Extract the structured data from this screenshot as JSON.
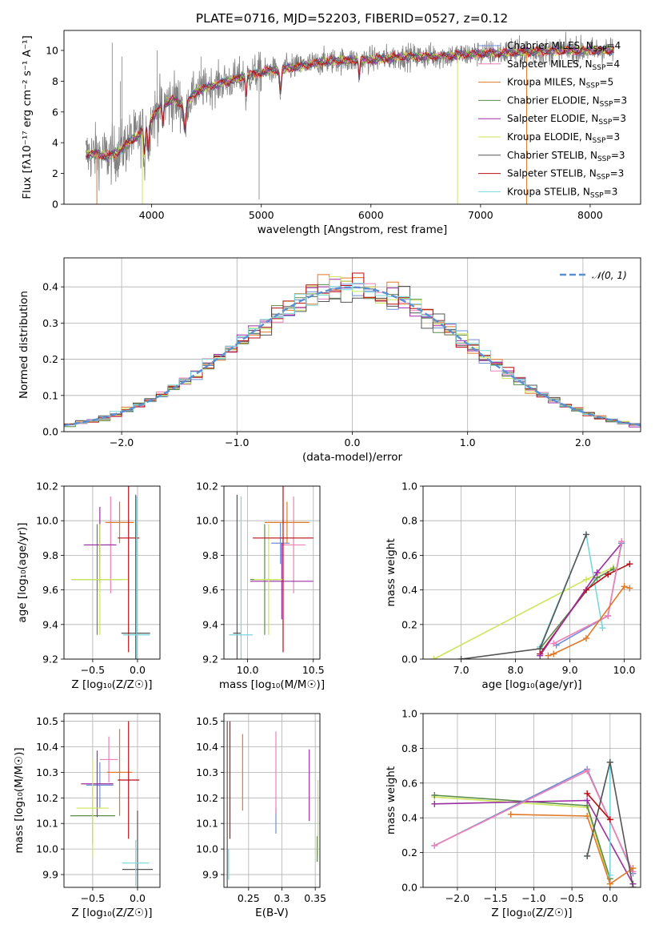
{
  "title": "PLATE=0716, MJD=52203, FIBERID=0527, z=0.12",
  "colors": {
    "chabrier_miles": "#6f8fd6",
    "salpeter_miles": "#f07fb6",
    "kroupa_miles": "#e07a28",
    "chabrier_elodie": "#5a8a4c",
    "salpeter_elodie": "#9c2ea3",
    "kroupa_elodie": "#cce65a",
    "chabrier_stelib": "#555555",
    "salpeter_stelib": "#b80e14",
    "kroupa_stelib": "#78d8dc",
    "data_gray": "#808080",
    "grid": "#b0b0b0",
    "normal": "#5b8fd4"
  },
  "legend": [
    {
      "label": "Chabrier MILES, N",
      "sub": "SSP",
      "tail": "=4",
      "color": "#6f8fd6"
    },
    {
      "label": "Salpeter MILES, N",
      "sub": "SSP",
      "tail": "=4",
      "color": "#f07fb6"
    },
    {
      "label": "Kroupa MILES, N",
      "sub": "SSP",
      "tail": "=5",
      "color": "#e07a28"
    },
    {
      "label": "Chabrier ELODIE, N",
      "sub": "SSP",
      "tail": "=3",
      "color": "#5a8a4c"
    },
    {
      "label": "Salpeter ELODIE, N",
      "sub": "SSP",
      "tail": "=3",
      "color": "#9c2ea3"
    },
    {
      "label": "Kroupa ELODIE, N",
      "sub": "SSP",
      "tail": "=3",
      "color": "#cce65a"
    },
    {
      "label": "Chabrier STELIB, N",
      "sub": "SSP",
      "tail": "=3",
      "color": "#555555"
    },
    {
      "label": "Salpeter STELIB, N",
      "sub": "SSP",
      "tail": "=3",
      "color": "#b80e14"
    },
    {
      "label": "Kroupa STELIB, N",
      "sub": "SSP",
      "tail": "=3",
      "color": "#78d8dc"
    }
  ],
  "chart_data": [
    {
      "id": "spectrum",
      "type": "line",
      "xlabel": "wavelength [Angstrom, rest frame]",
      "ylabel": "Flux [fλ10⁻¹⁷ erg cm⁻² s⁻¹ A⁻¹]",
      "xlim": [
        3200,
        8460
      ],
      "ylim": [
        0,
        11.3
      ],
      "xticks": [
        4000,
        5000,
        6000,
        7000,
        8000
      ],
      "yticks": [
        0,
        2,
        4,
        6,
        8,
        10
      ],
      "grid": false,
      "legend_position": "upper right",
      "continuum_knots": {
        "x": [
          3400,
          3500,
          3600,
          3700,
          3800,
          3900,
          4000,
          4100,
          4200,
          4300,
          4400,
          4500,
          4700,
          5000,
          5300,
          5600,
          6000,
          6300,
          6600,
          7000,
          7400,
          7800,
          8200
        ],
        "y": [
          3.2,
          3.3,
          3.1,
          3.4,
          4.1,
          4.6,
          5.6,
          6.5,
          6.8,
          6.4,
          7.3,
          7.6,
          8.0,
          8.6,
          8.9,
          9.3,
          9.4,
          9.6,
          9.6,
          9.8,
          9.9,
          10.0,
          10.0
        ]
      }
    },
    {
      "id": "residuals",
      "type": "histogram",
      "xlabel": "(data-model)/error",
      "ylabel": "Normed distribution",
      "xlim": [
        -2.5,
        2.5
      ],
      "ylim": [
        0,
        0.48
      ],
      "xticks": [
        -2,
        -1,
        0,
        1,
        2
      ],
      "yticks": [
        0.0,
        0.1,
        0.2,
        0.3,
        0.4
      ],
      "grid": true,
      "reference_label": "𝒩(0, 1)",
      "bin_width": 0.1
    },
    {
      "id": "age_vs_Z",
      "type": "errorbar",
      "xlabel": "Z [log₁₀(Z/Z☉)]",
      "ylabel": "age  [log₁₀(age/yr)]",
      "xlim": [
        -0.82,
        0.25
      ],
      "ylim": [
        9.2,
        10.2
      ],
      "xticks": [
        -0.5,
        0.0
      ],
      "yticks": [
        9.2,
        9.4,
        9.6,
        9.8,
        10.0,
        10.2
      ],
      "grid": true,
      "points": [
        {
          "color": "#6f8fd6",
          "x": -0.42,
          "xerr": 0.15,
          "y": 9.86,
          "yerr": 0.12
        },
        {
          "color": "#f07fb6",
          "x": -0.3,
          "xerr": 0.07,
          "y": 9.86,
          "yerr": 0.28
        },
        {
          "color": "#e07a28",
          "x": -0.2,
          "xerr": 0.16,
          "y": 9.99,
          "yerr": 0.12
        },
        {
          "color": "#5a8a4c",
          "x": -0.45,
          "xerr": 0.28,
          "y": 9.66,
          "yerr": 0.32
        },
        {
          "color": "#9c2ea3",
          "x": -0.42,
          "xerr": 0.18,
          "y": 9.86,
          "yerr": 0.22
        },
        {
          "color": "#cce65a",
          "x": -0.42,
          "xerr": 0.32,
          "y": 9.66,
          "yerr": 0.32
        },
        {
          "color": "#555555",
          "x": -0.02,
          "xerr": 0.16,
          "y": 9.35,
          "yerr": 0.8
        },
        {
          "color": "#b80e14",
          "x": -0.1,
          "xerr": 0.12,
          "y": 9.9,
          "yerr": 0.66
        },
        {
          "color": "#78d8dc",
          "x": -0.01,
          "xerr": 0.15,
          "y": 9.34,
          "yerr": 0.8
        }
      ]
    },
    {
      "id": "age_vs_mass",
      "type": "errorbar",
      "xlabel": "mass [log₁₀(M/M☉)]",
      "ylabel": "",
      "xlim": [
        9.82,
        10.55
      ],
      "ylim": [
        9.2,
        10.2
      ],
      "xticks": [
        10.0,
        10.5
      ],
      "yticks": [
        9.2,
        9.4,
        9.6,
        9.8,
        10.0,
        10.2
      ],
      "grid": true,
      "points": [
        {
          "color": "#6f8fd6",
          "x": 10.25,
          "xerr": 0.07,
          "y": 9.87,
          "yerr": 0.12
        },
        {
          "color": "#f07fb6",
          "x": 10.35,
          "xerr": 0.09,
          "y": 9.86,
          "yerr": 0.28
        },
        {
          "color": "#e07a28",
          "x": 10.3,
          "xerr": 0.17,
          "y": 9.99,
          "yerr": 0.12
        },
        {
          "color": "#5a8a4c",
          "x": 10.13,
          "xerr": 0.11,
          "y": 9.66,
          "yerr": 0.32
        },
        {
          "color": "#9c2ea3",
          "x": 10.26,
          "xerr": 0.24,
          "y": 9.65,
          "yerr": 0.22
        },
        {
          "color": "#cce65a",
          "x": 10.16,
          "xerr": 0.11,
          "y": 9.66,
          "yerr": 0.32
        },
        {
          "color": "#555555",
          "x": 9.92,
          "xerr": 0.03,
          "y": 9.35,
          "yerr": 0.8
        },
        {
          "color": "#b80e14",
          "x": 10.27,
          "xerr": 0.23,
          "y": 9.9,
          "yerr": 0.66
        },
        {
          "color": "#78d8dc",
          "x": 9.95,
          "xerr": 0.09,
          "y": 9.34,
          "yerr": 0.8
        }
      ]
    },
    {
      "id": "weight_vs_age",
      "type": "line",
      "xlabel": "age  [log₁₀(age/yr)]",
      "ylabel": "mass weight",
      "xlim": [
        6.3,
        10.3
      ],
      "ylim": [
        0,
        1.0
      ],
      "xticks": [
        7,
        8,
        9,
        10
      ],
      "yticks": [
        0.0,
        0.2,
        0.4,
        0.6,
        0.8,
        1.0
      ],
      "grid": true,
      "series": [
        {
          "color": "#cce65a",
          "x": [
            6.5,
            9.3,
            9.8
          ],
          "y": [
            0.0,
            0.46,
            0.53
          ]
        },
        {
          "color": "#78d8dc",
          "x": [
            8.45,
            9.3,
            9.6
          ],
          "y": [
            0.07,
            0.72,
            0.18
          ]
        },
        {
          "color": "#5a8a4c",
          "x": [
            8.45,
            9.5,
            9.8
          ],
          "y": [
            0.06,
            0.47,
            0.52
          ]
        },
        {
          "color": "#555555",
          "x": [
            7.0,
            8.45,
            9.3
          ],
          "y": [
            0.0,
            0.06,
            0.72
          ]
        },
        {
          "color": "#b80e14",
          "x": [
            8.45,
            9.3,
            9.7,
            10.1
          ],
          "y": [
            0.03,
            0.4,
            0.49,
            0.55
          ]
        },
        {
          "color": "#9c2ea3",
          "x": [
            8.45,
            9.5,
            9.95
          ],
          "y": [
            0.02,
            0.5,
            0.67
          ]
        },
        {
          "color": "#6f8fd6",
          "x": [
            8.75,
            9.7,
            9.95
          ],
          "y": [
            0.08,
            0.25,
            0.67
          ]
        },
        {
          "color": "#f07fb6",
          "x": [
            8.7,
            9.7,
            9.95
          ],
          "y": [
            0.09,
            0.25,
            0.68
          ]
        },
        {
          "color": "#e07a28",
          "x": [
            8.6,
            8.7,
            9.3,
            10.0,
            10.1
          ],
          "y": [
            0.02,
            0.03,
            0.12,
            0.42,
            0.41
          ]
        }
      ]
    },
    {
      "id": "mass_vs_Z",
      "type": "errorbar",
      "xlabel": "Z [log₁₀(Z/Z☉)]",
      "ylabel": "mass [log₁₀(M/M☉)]",
      "xlim": [
        -0.82,
        0.25
      ],
      "ylim": [
        9.85,
        10.53
      ],
      "xticks": [
        -0.5,
        0.0
      ],
      "yticks": [
        9.9,
        10.0,
        10.1,
        10.2,
        10.3,
        10.4,
        10.5
      ],
      "grid": true,
      "points": [
        {
          "color": "#6f8fd6",
          "x": -0.42,
          "xerr": 0.15,
          "y": 10.25,
          "yerr": 0.09
        },
        {
          "color": "#f07fb6",
          "x": -0.32,
          "xerr": 0.1,
          "y": 10.35,
          "yerr": 0.09
        },
        {
          "color": "#e07a28",
          "x": -0.2,
          "xerr": 0.14,
          "y": 10.3,
          "yerr": 0.17
        },
        {
          "color": "#5a8a4c",
          "x": -0.5,
          "xerr": 0.25,
          "y": 10.13,
          "yerr": 0.11
        },
        {
          "color": "#9c2ea3",
          "x": -0.45,
          "xerr": 0.18,
          "y": 10.255,
          "yerr": 0.13
        },
        {
          "color": "#cce65a",
          "x": -0.5,
          "xerr": 0.18,
          "y": 10.16,
          "yerr": 0.19
        },
        {
          "color": "#555555",
          "x": 0.0,
          "xerr": 0.17,
          "y": 9.92,
          "yerr": 0.23
        },
        {
          "color": "#b80e14",
          "x": -0.1,
          "xerr": 0.12,
          "y": 10.27,
          "yerr": 0.23
        },
        {
          "color": "#78d8dc",
          "x": -0.02,
          "xerr": 0.15,
          "y": 9.945,
          "yerr": 0.09
        }
      ]
    },
    {
      "id": "mass_vs_ebv",
      "type": "errorbar",
      "xlabel": "E(B-V)",
      "ylabel": "",
      "xlim": [
        0.213,
        0.357
      ],
      "ylim": [
        9.85,
        10.53
      ],
      "xticks": [
        0.25,
        0.3,
        0.35
      ],
      "yticks": [
        9.9,
        10.0,
        10.1,
        10.2,
        10.3,
        10.4,
        10.5
      ],
      "grid": true,
      "points": [
        {
          "color": "#6f8fd6",
          "x": 0.291,
          "xerr": 0,
          "y": 10.11,
          "yerr": 0.05
        },
        {
          "color": "#f07fb6",
          "x": 0.291,
          "xerr": 0,
          "y": 10.3,
          "yerr": 0.16
        },
        {
          "color": "#e07a28",
          "x": 0.241,
          "xerr": 0,
          "y": 10.3,
          "yerr": 0.15
        },
        {
          "color": "#5a8a4c",
          "x": 0.353,
          "xerr": 0,
          "y": 10.0,
          "yerr": 0.05
        },
        {
          "color": "#9c2ea3",
          "x": 0.341,
          "xerr": 0,
          "y": 10.25,
          "yerr": 0.14
        },
        {
          "color": "#cce65a",
          "x": 0.354,
          "xerr": 0,
          "y": 10.12,
          "yerr": 0.15
        },
        {
          "color": "#555555",
          "x": 0.218,
          "xerr": 0,
          "y": 10.14,
          "yerr": 0.36
        },
        {
          "color": "#b80e14",
          "x": 0.222,
          "xerr": 0,
          "y": 10.27,
          "yerr": 0.23
        },
        {
          "color": "#78d8dc",
          "x": 0.22,
          "xerr": 0,
          "y": 9.94,
          "yerr": 0.06
        }
      ]
    },
    {
      "id": "weight_vs_Z",
      "type": "line",
      "xlabel": "Z [log₁₀(Z/Z☉)]",
      "ylabel": "mass weight",
      "xlim": [
        -2.45,
        0.4
      ],
      "ylim": [
        0,
        1.0
      ],
      "xticks": [
        -2.0,
        -1.5,
        -1.0,
        -0.5,
        0.0
      ],
      "yticks": [
        0.0,
        0.2,
        0.4,
        0.6,
        0.8,
        1.0
      ],
      "grid": true,
      "series": [
        {
          "color": "#cce65a",
          "x": [
            -2.3,
            -0.3,
            0.0
          ],
          "y": [
            0.52,
            0.46,
            0.02
          ]
        },
        {
          "color": "#5a8a4c",
          "x": [
            -2.3,
            -0.3,
            0.0
          ],
          "y": [
            0.53,
            0.47,
            0.05
          ]
        },
        {
          "color": "#9c2ea3",
          "x": [
            -2.3,
            -0.3,
            0.3
          ],
          "y": [
            0.48,
            0.5,
            0.02
          ]
        },
        {
          "color": "#6f8fd6",
          "x": [
            -2.3,
            -0.3,
            0.3
          ],
          "y": [
            0.24,
            0.68,
            0.08
          ]
        },
        {
          "color": "#f07fb6",
          "x": [
            -2.3,
            -0.3,
            0.3
          ],
          "y": [
            0.24,
            0.67,
            0.09
          ]
        },
        {
          "color": "#e07a28",
          "x": [
            -1.3,
            -0.3,
            0.0,
            0.3
          ],
          "y": [
            0.42,
            0.41,
            0.02,
            0.11
          ]
        },
        {
          "color": "#78d8dc",
          "x": [
            -0.3,
            0.0,
            0.0
          ],
          "y": [
            0.18,
            0.72,
            0.07
          ]
        },
        {
          "color": "#555555",
          "x": [
            -0.3,
            0.0,
            0.3
          ],
          "y": [
            0.18,
            0.72,
            0.0
          ]
        },
        {
          "color": "#b80e14",
          "x": [
            -0.3,
            0.0
          ],
          "y": [
            0.54,
            0.39
          ]
        }
      ]
    }
  ]
}
